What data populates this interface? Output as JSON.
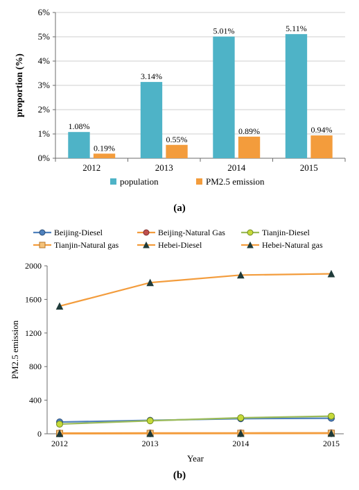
{
  "panel_a": {
    "type": "bar",
    "panel_label": "(a)",
    "categories": [
      "2012",
      "2013",
      "2014",
      "2015"
    ],
    "series": [
      {
        "name": "population",
        "color": "#4eb3c7",
        "values": [
          1.08,
          3.14,
          5.01,
          5.11
        ],
        "labels": [
          "1.08%",
          "3.14%",
          "5.01%",
          "5.11%"
        ]
      },
      {
        "name": "PM2.5 emission",
        "color": "#f39c3c",
        "values": [
          0.19,
          0.55,
          0.89,
          0.94
        ],
        "labels": [
          "0.19%",
          "0.55%",
          "0.89%",
          "0.94%"
        ]
      }
    ],
    "y_axis": {
      "label": "proportion (%)",
      "min": 0,
      "max": 6,
      "tick_step": 1,
      "tick_labels": [
        "0%",
        "1%",
        "2%",
        "3%",
        "4%",
        "5%",
        "6%"
      ]
    },
    "style": {
      "bar_width": 0.3,
      "bar_gap": 0.05,
      "axis_fontsize": 14,
      "datalabel_fontsize": 12,
      "tick_fontsize": 13,
      "legend_fontsize": 13,
      "background": "#ffffff",
      "grid_color": "#bfbfbf",
      "axis_color": "#6b6b6b"
    },
    "legend_items": [
      {
        "label": "population",
        "color": "#4eb3c7"
      },
      {
        "label": "PM2.5 emission",
        "color": "#f39c3c"
      }
    ]
  },
  "panel_b": {
    "type": "line",
    "panel_label": "(b)",
    "x_label": "Year",
    "y_label": "PM2.5 emission",
    "x_values": [
      "2012",
      "2013",
      "2014",
      "2015"
    ],
    "y_axis": {
      "min": 0,
      "max": 2000,
      "tick_step": 400
    },
    "series": [
      {
        "name": "Beijing-Diesel",
        "line_color": "#4f81bd",
        "marker_fill": "#4f81bd",
        "marker_stroke": "#2a4d77",
        "marker": "circle",
        "values": [
          140,
          160,
          180,
          185
        ]
      },
      {
        "name": "Beijing-Natural Gas",
        "line_color": "#f39c3c",
        "marker_fill": "#c0504d",
        "marker_stroke": "#7f2e2c",
        "marker": "circle",
        "values": [
          8,
          9,
          10,
          11
        ]
      },
      {
        "name": "Tianjin-Diesel",
        "line_color": "#9bbb59",
        "marker_fill": "#c6d93a",
        "marker_stroke": "#6e8a1f",
        "marker": "circle",
        "values": [
          115,
          155,
          190,
          210
        ]
      },
      {
        "name": "Tianjin-Natural gas",
        "line_color": "#f39c3c",
        "marker_fill": "#f4c27a",
        "marker_stroke": "#b9762a",
        "marker": "square",
        "values": [
          4,
          5,
          6,
          7
        ]
      },
      {
        "name": "Hebei-Diesel",
        "line_color": "#f39c3c",
        "marker_fill": "#1f3b3a",
        "marker_stroke": "#1f3b3a",
        "marker": "triangle",
        "values": [
          1520,
          1800,
          1890,
          1905
        ]
      },
      {
        "name": "Hebei-Natural gas",
        "line_color": "#f39c3c",
        "marker_fill": "#1f3b3a",
        "marker_stroke": "#1f3b3a",
        "marker": "triangle",
        "values": [
          2,
          3,
          4,
          5
        ]
      }
    ],
    "style": {
      "axis_fontsize": 13,
      "tick_fontsize": 12,
      "legend_fontsize": 12,
      "line_width": 2.2,
      "marker_radius": 4.5,
      "grid_color": "#bfbfbf",
      "axis_color": "#6b6b6b",
      "background": "#ffffff"
    }
  }
}
